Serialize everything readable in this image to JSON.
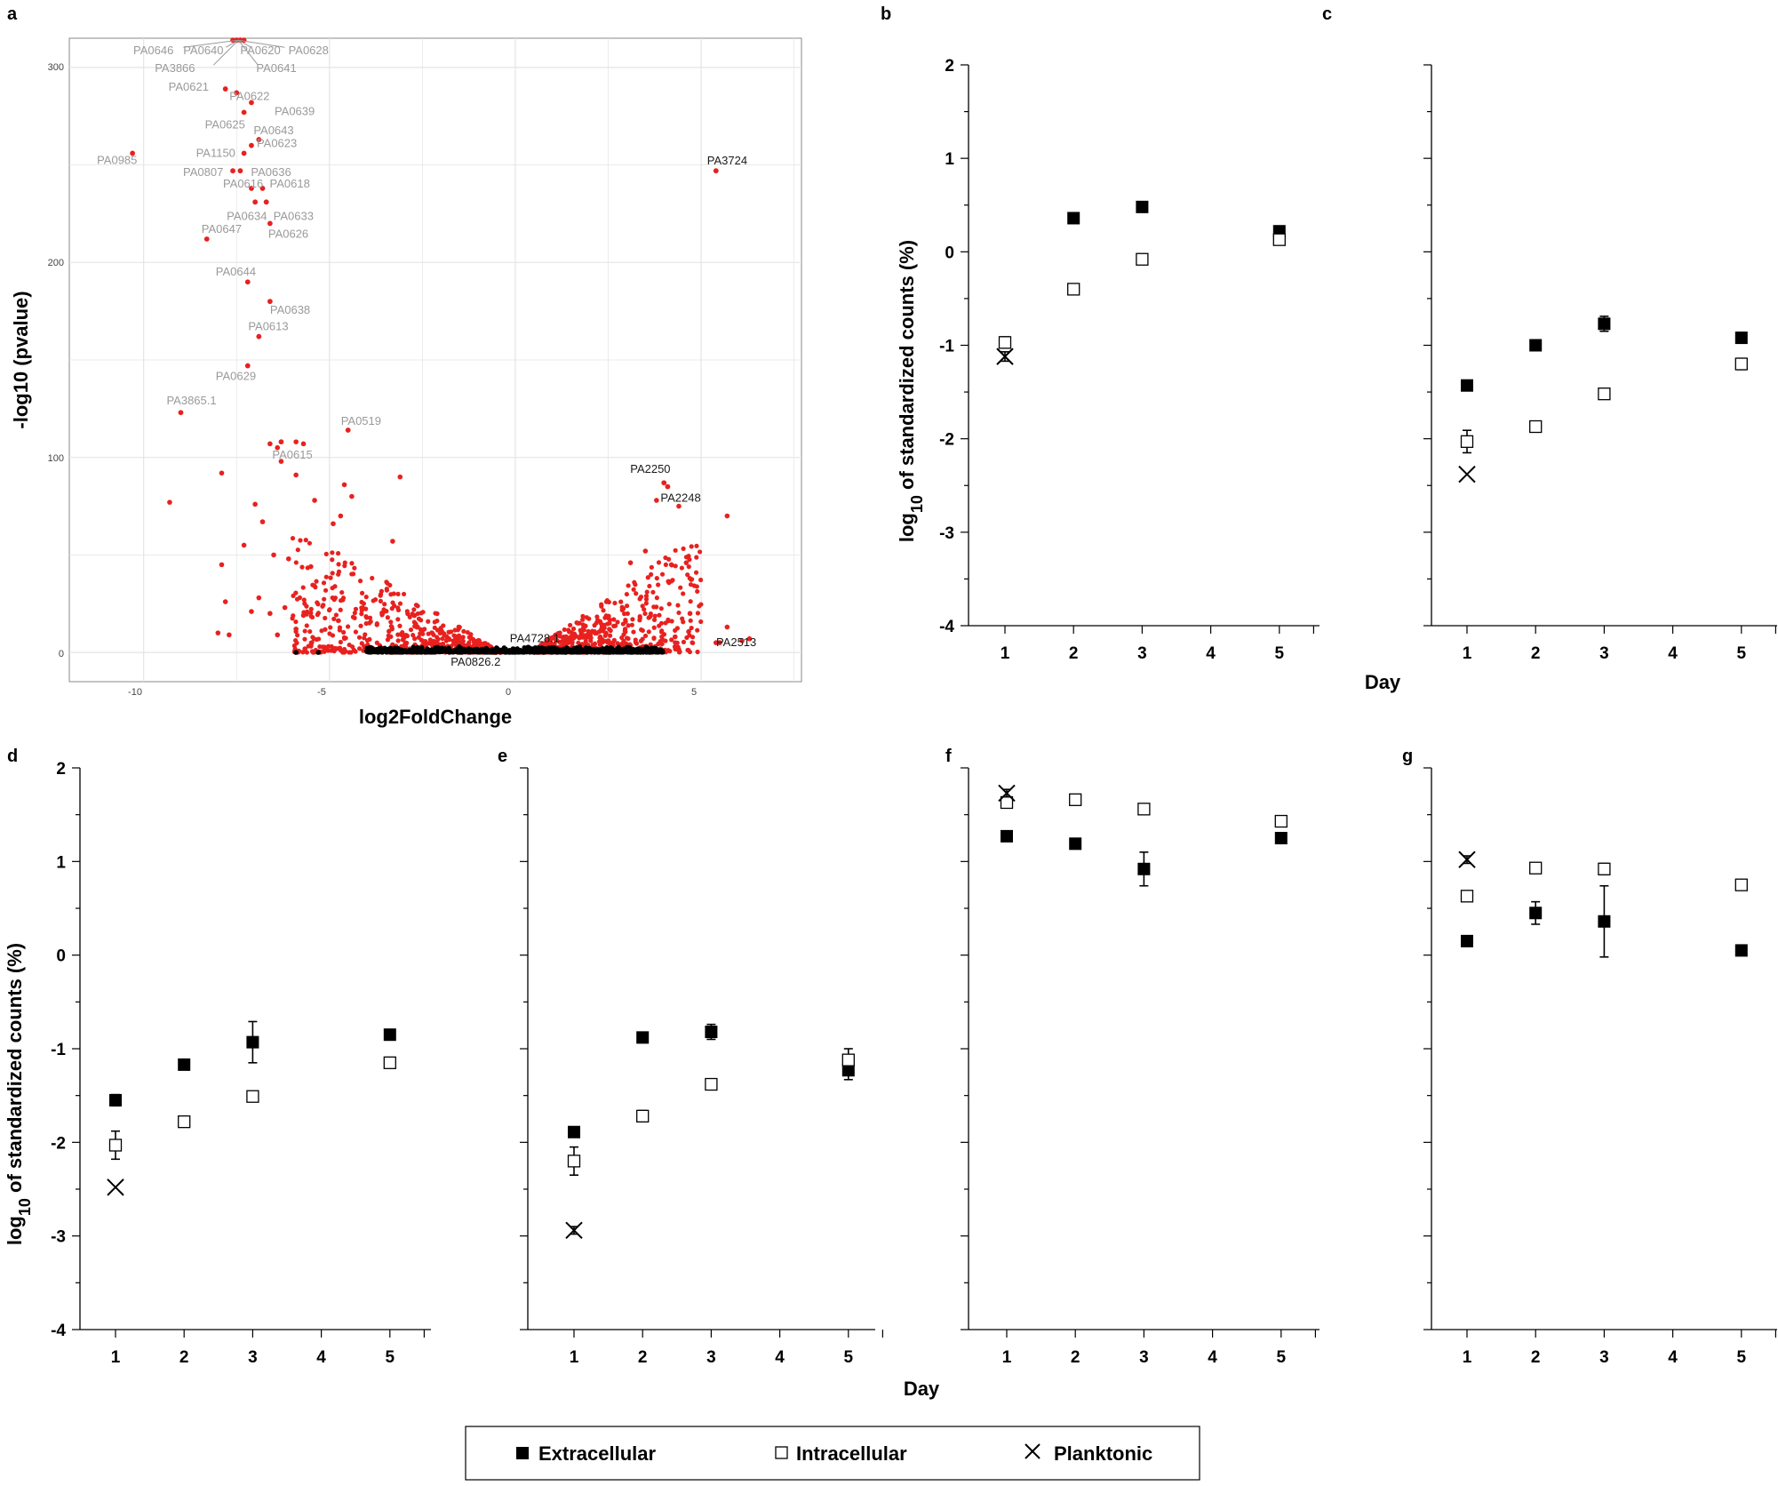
{
  "volcano": {
    "panel_label": "a",
    "xlabel": "log2FoldChange",
    "ylabel": "-log10 (pvalue)",
    "x_ticks": [
      "-10",
      "-5",
      "0",
      "5"
    ],
    "y_ticks": [
      "0",
      "100",
      "200",
      "300"
    ]
  },
  "chart_data": [
    {
      "type": "scatter",
      "panel": "a",
      "title": "",
      "xlabel": "log2FoldChange",
      "ylabel": "-log10 (pvalue)",
      "xlim": [
        -12,
        7.7
      ],
      "ylim": [
        -15,
        315
      ],
      "colors": {
        "significant": "#e8211f",
        "not_significant": "#000000",
        "grid": "#e4e4e4",
        "label_grey": "#9a9a9a"
      },
      "labeled_points": [
        {
          "label": "PA0646",
          "x": -7.6,
          "y": 314,
          "color": "grey"
        },
        {
          "label": "PA0640",
          "x": -7.5,
          "y": 314,
          "color": "grey"
        },
        {
          "label": "PA0620",
          "x": -7.4,
          "y": 314,
          "color": "grey"
        },
        {
          "label": "PA0628",
          "x": -7.3,
          "y": 314,
          "color": "grey"
        },
        {
          "label": "PA3866",
          "x": -7.5,
          "y": 314,
          "color": "grey"
        },
        {
          "label": "PA0641",
          "x": -7.4,
          "y": 314,
          "color": "grey"
        },
        {
          "label": "PA0621",
          "x": -7.8,
          "y": 289,
          "color": "grey"
        },
        {
          "label": "PA0622",
          "x": -7.5,
          "y": 287,
          "color": "grey"
        },
        {
          "label": "PA0639",
          "x": -7.1,
          "y": 282,
          "color": "grey"
        },
        {
          "label": "PA0625",
          "x": -7.3,
          "y": 277,
          "color": "grey"
        },
        {
          "label": "PA0643",
          "x": -6.9,
          "y": 263,
          "color": "grey"
        },
        {
          "label": "PA1150",
          "x": -7.3,
          "y": 256,
          "color": "grey"
        },
        {
          "label": "PA0623",
          "x": -7.1,
          "y": 260,
          "color": "grey"
        },
        {
          "label": "PA0985",
          "x": -10.3,
          "y": 256,
          "color": "grey"
        },
        {
          "label": "PA0807",
          "x": -7.6,
          "y": 247,
          "color": "grey"
        },
        {
          "label": "PA0636",
          "x": -7.4,
          "y": 247,
          "color": "grey"
        },
        {
          "label": "PA0616",
          "x": -7.1,
          "y": 238,
          "color": "grey"
        },
        {
          "label": "PA0618",
          "x": -6.8,
          "y": 238,
          "color": "grey"
        },
        {
          "label": "PA0634",
          "x": -7.0,
          "y": 231,
          "color": "grey"
        },
        {
          "label": "PA0633",
          "x": -6.7,
          "y": 231,
          "color": "grey"
        },
        {
          "label": "PA0647",
          "x": -8.3,
          "y": 212,
          "color": "grey"
        },
        {
          "label": "PA0626",
          "x": -6.6,
          "y": 220,
          "color": "grey"
        },
        {
          "label": "PA0644",
          "x": -7.2,
          "y": 190,
          "color": "grey"
        },
        {
          "label": "PA0638",
          "x": -6.6,
          "y": 180,
          "color": "grey"
        },
        {
          "label": "PA0613",
          "x": -6.9,
          "y": 162,
          "color": "grey"
        },
        {
          "label": "PA0629",
          "x": -7.2,
          "y": 147,
          "color": "grey"
        },
        {
          "label": "PA3865.1",
          "x": -9.0,
          "y": 123,
          "color": "grey"
        },
        {
          "label": "PA0519",
          "x": -4.5,
          "y": 114,
          "color": "grey"
        },
        {
          "label": "PA0615",
          "x": -6.3,
          "y": 108,
          "color": "grey"
        },
        {
          "label": "PA3724",
          "x": 5.4,
          "y": 247,
          "color": "black"
        },
        {
          "label": "PA2250",
          "x": 4.0,
          "y": 87,
          "color": "black"
        },
        {
          "label": "PA2248",
          "x": 4.1,
          "y": 85,
          "color": "black"
        },
        {
          "label": "PA4728.1",
          "x": 1.0,
          "y": 2,
          "color": "black"
        },
        {
          "label": "PA0826.2",
          "x": -0.4,
          "y": 0,
          "color": "black"
        },
        {
          "label": "PA2513",
          "x": 5.5,
          "y": 5,
          "color": "black"
        }
      ]
    },
    {
      "type": "scatter",
      "panel": "b",
      "xlabel": "Day",
      "ylabel_main": "log",
      "ylabel_sub": "10",
      "ylabel_rest": " of standardized counts (%)",
      "ylim": [
        -4,
        2
      ],
      "yticks": [
        2,
        1,
        0,
        -1,
        -2,
        -3,
        -4
      ],
      "x_categories": [
        "1",
        "2",
        "3",
        "4",
        "5"
      ],
      "series": [
        {
          "name": "Extracellular",
          "points": [
            [
              2,
              0.36,
              0.04
            ],
            [
              3,
              0.48,
              0.04
            ],
            [
              5,
              0.22,
              0.05
            ]
          ]
        },
        {
          "name": "Intracellular",
          "points": [
            [
              1,
              -0.97,
              0.06
            ],
            [
              2,
              -0.4,
              0.04
            ],
            [
              3,
              -0.08,
              0.04
            ],
            [
              5,
              0.13,
              0.04
            ]
          ]
        },
        {
          "name": "Planktonic",
          "points": [
            [
              1,
              -1.12,
              0.05
            ]
          ]
        }
      ]
    },
    {
      "type": "scatter",
      "panel": "c",
      "xlabel": "Day",
      "ylim": [
        -4,
        2
      ],
      "yticks": [
        2,
        1,
        0,
        -1,
        -2,
        -3,
        -4
      ],
      "x_categories": [
        "1",
        "2",
        "3",
        "4",
        "5"
      ],
      "series": [
        {
          "name": "Extracellular",
          "points": [
            [
              1,
              -1.43,
              0.04
            ],
            [
              2,
              -1.0,
              0.04
            ],
            [
              3,
              -0.77,
              0.08
            ],
            [
              5,
              -0.92,
              0.04
            ]
          ]
        },
        {
          "name": "Intracellular",
          "points": [
            [
              1,
              -2.03,
              0.12
            ],
            [
              2,
              -1.87,
              0.05
            ],
            [
              3,
              -1.52,
              0.04
            ],
            [
              5,
              -1.2,
              0.06
            ]
          ]
        },
        {
          "name": "Planktonic",
          "points": [
            [
              1,
              -2.38,
              0
            ]
          ]
        }
      ]
    },
    {
      "type": "scatter",
      "panel": "d",
      "ylabel_main": "log",
      "ylabel_sub": "10",
      "ylabel_rest": " of standardized counts (%)",
      "ylim": [
        -4,
        2
      ],
      "yticks": [
        2,
        1,
        0,
        -1,
        -2,
        -3,
        -4
      ],
      "x_categories": [
        "1",
        "2",
        "3",
        "4",
        "5"
      ],
      "series": [
        {
          "name": "Extracellular",
          "points": [
            [
              1,
              -1.55,
              0.06
            ],
            [
              2,
              -1.17,
              0.03
            ],
            [
              3,
              -0.93,
              0.22
            ],
            [
              5,
              -0.85,
              0.05
            ]
          ]
        },
        {
          "name": "Intracellular",
          "points": [
            [
              1,
              -2.03,
              0.15
            ],
            [
              2,
              -1.78,
              0.05
            ],
            [
              3,
              -1.51,
              0.05
            ],
            [
              5,
              -1.15,
              0.04
            ]
          ]
        },
        {
          "name": "Planktonic",
          "points": [
            [
              1,
              -2.48,
              0
            ]
          ]
        }
      ]
    },
    {
      "type": "scatter",
      "panel": "e",
      "xlabel": "Day",
      "ylim": [
        -4,
        2
      ],
      "yticks": [
        2,
        1,
        0,
        -1,
        -2,
        -3,
        -4
      ],
      "x_categories": [
        "1",
        "2",
        "3",
        "4",
        "5"
      ],
      "series": [
        {
          "name": "Extracellular",
          "points": [
            [
              1,
              -1.89,
              0.05
            ],
            [
              2,
              -0.88,
              0.03
            ],
            [
              3,
              -0.82,
              0.08
            ],
            [
              5,
              -1.23,
              0.1
            ]
          ]
        },
        {
          "name": "Intracellular",
          "points": [
            [
              1,
              -2.2,
              0.15
            ],
            [
              2,
              -1.72,
              0.06
            ],
            [
              3,
              -1.38,
              0.05
            ],
            [
              5,
              -1.12,
              0.12
            ]
          ]
        },
        {
          "name": "Planktonic",
          "points": [
            [
              1,
              -2.94,
              0.04
            ]
          ]
        }
      ]
    },
    {
      "type": "scatter",
      "panel": "f",
      "ylim": [
        -4,
        2
      ],
      "yticks": [
        2,
        1,
        0,
        -1,
        -2,
        -3,
        -4
      ],
      "x_categories": [
        "1",
        "2",
        "3",
        "4",
        "5"
      ],
      "series": [
        {
          "name": "Extracellular",
          "points": [
            [
              1,
              1.27,
              0.03
            ],
            [
              2,
              1.19,
              0.03
            ],
            [
              3,
              0.92,
              0.18
            ],
            [
              5,
              1.25,
              0.04
            ]
          ]
        },
        {
          "name": "Intracellular",
          "points": [
            [
              1,
              1.63,
              0.05
            ],
            [
              2,
              1.66,
              0.04
            ],
            [
              3,
              1.56,
              0.05
            ],
            [
              5,
              1.43,
              0.05
            ]
          ]
        },
        {
          "name": "Planktonic",
          "points": [
            [
              1,
              1.73,
              0.04
            ]
          ]
        }
      ]
    },
    {
      "type": "scatter",
      "panel": "g",
      "ylim": [
        -4,
        2
      ],
      "yticks": [
        2,
        1,
        0,
        -1,
        -2,
        -3,
        -4
      ],
      "x_categories": [
        "1",
        "2",
        "3",
        "4",
        "5"
      ],
      "series": [
        {
          "name": "Extracellular",
          "points": [
            [
              1,
              0.15,
              0.03
            ],
            [
              2,
              0.45,
              0.12
            ],
            [
              3,
              0.36,
              0.38
            ],
            [
              5,
              0.05,
              0.03
            ]
          ]
        },
        {
          "name": "Intracellular",
          "points": [
            [
              1,
              0.63,
              0.05
            ],
            [
              2,
              0.93,
              0.04
            ],
            [
              3,
              0.92,
              0.06
            ],
            [
              5,
              0.75,
              0.05
            ]
          ]
        },
        {
          "name": "Planktonic",
          "points": [
            [
              1,
              1.02,
              0.04
            ]
          ]
        }
      ]
    }
  ],
  "scatter_panels": {
    "day_label": "Day",
    "legend": [
      {
        "name": "Extracellular",
        "symbol": "filled-square"
      },
      {
        "name": "Intracellular",
        "symbol": "open-square"
      },
      {
        "name": "Planktonic",
        "symbol": "cross"
      }
    ]
  }
}
